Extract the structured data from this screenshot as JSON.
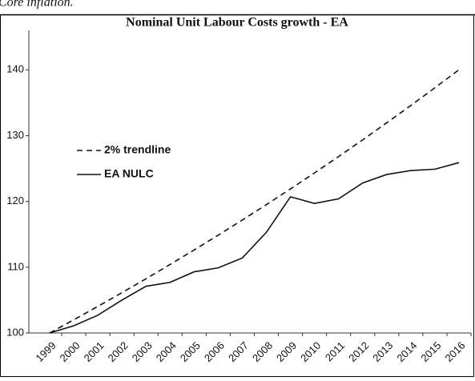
{
  "header_text": "Core inflation.",
  "chart_data": {
    "type": "line",
    "title": "Nominal Unit Labour Costs growth - EA",
    "categories": [
      "1999",
      "2000",
      "2001",
      "2002",
      "2003",
      "2004",
      "2005",
      "2006",
      "2007",
      "2008",
      "2009",
      "2010",
      "2011",
      "2012",
      "2013",
      "2014",
      "2015",
      "2016"
    ],
    "series": [
      {
        "name": "2% trendline",
        "color": "#111111",
        "style": "dashed",
        "values": [
          100,
          102,
          104.04,
          106.12,
          108.24,
          110.41,
          112.62,
          114.87,
          117.17,
          119.51,
          121.9,
          124.34,
          126.82,
          129.36,
          131.95,
          134.59,
          137.28,
          140.02
        ]
      },
      {
        "name": "EA NULC",
        "color": "#111111",
        "style": "solid",
        "values": [
          100,
          101.1,
          102.7,
          105,
          107.1,
          107.7,
          109.3,
          109.9,
          111.4,
          115.3,
          120.7,
          119.7,
          120.4,
          122.8,
          124.1,
          124.7,
          124.9,
          125.9
        ]
      }
    ],
    "ylim": [
      100,
      146
    ],
    "yticks": [
      100,
      110,
      120,
      130,
      140
    ],
    "grid": false,
    "legend": "left"
  }
}
